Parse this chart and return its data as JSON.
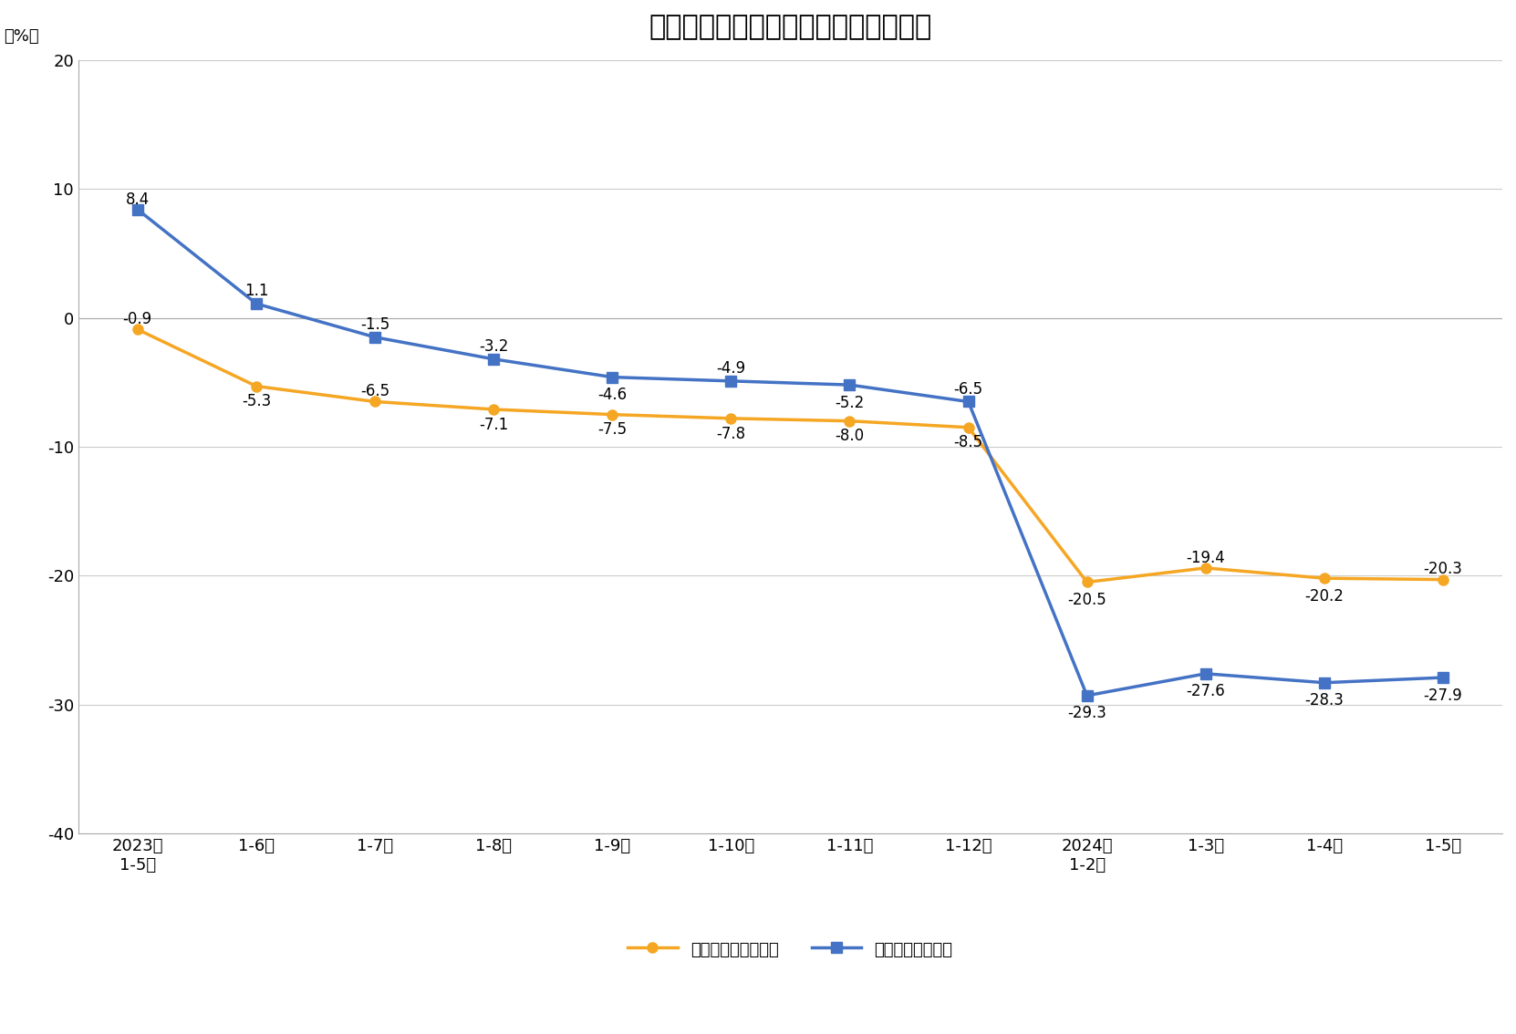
{
  "title": "全国新建商品房销售面积及销售额增速",
  "ylabel": "（%）",
  "categories": [
    "2023年\n1-5月",
    "1-6月",
    "1-7月",
    "1-8月",
    "1-9月",
    "1-10月",
    "1-11月",
    "1-12月",
    "2024年\n1-2月",
    "1-3月",
    "1-4月",
    "1-5月"
  ],
  "area_values": [
    -0.9,
    -5.3,
    -6.5,
    -7.1,
    -7.5,
    -7.8,
    -8.0,
    -8.5,
    -20.5,
    -19.4,
    -20.2,
    -20.3
  ],
  "sales_values": [
    8.4,
    1.1,
    -1.5,
    -3.2,
    -4.6,
    -4.9,
    -5.2,
    -6.5,
    -29.3,
    -27.6,
    -28.3,
    -27.9
  ],
  "area_color": "#F5A623",
  "sales_color": "#4472C4",
  "area_label": "新建商品房销售面积",
  "sales_label": "新建商品房销售额",
  "ylim": [
    -40,
    20
  ],
  "yticks": [
    -40,
    -30,
    -20,
    -10,
    0,
    10,
    20
  ],
  "background_color": "#FFFFFF",
  "plot_bg_color": "#FFFFFF",
  "title_fontsize": 22,
  "label_fontsize": 13,
  "tick_fontsize": 13,
  "legend_fontsize": 13,
  "annotation_fontsize": 12
}
